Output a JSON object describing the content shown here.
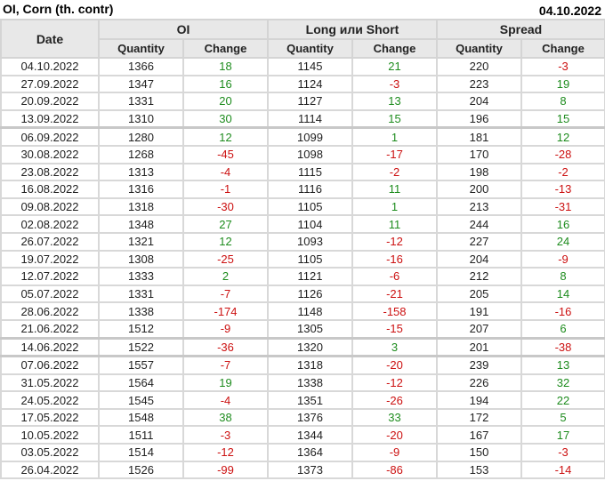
{
  "title": "OI, Corn (th. contr)",
  "date": "04.10.2022",
  "headers": {
    "date": "Date",
    "oi": "OI",
    "long_short": "Long или Short",
    "spread": "Spread",
    "quantity": "Quantity",
    "change": "Change"
  },
  "colors": {
    "positive": "#1e8c1e",
    "negative": "#cc1111",
    "header_bg": "#e8e8e8"
  },
  "rows": [
    [
      "04.10.2022",
      "1366",
      "18",
      "1145",
      "21",
      "220",
      "-3"
    ],
    [
      "27.09.2022",
      "1347",
      "16",
      "1124",
      "-3",
      "223",
      "19"
    ],
    [
      "20.09.2022",
      "1331",
      "20",
      "1127",
      "13",
      "204",
      "8"
    ],
    [
      "13.09.2022",
      "1310",
      "30",
      "1114",
      "15",
      "196",
      "15"
    ],
    [
      "06.09.2022",
      "1280",
      "12",
      "1099",
      "1",
      "181",
      "12"
    ],
    [
      "30.08.2022",
      "1268",
      "-45",
      "1098",
      "-17",
      "170",
      "-28"
    ],
    [
      "23.08.2022",
      "1313",
      "-4",
      "1115",
      "-2",
      "198",
      "-2"
    ],
    [
      "16.08.2022",
      "1316",
      "-1",
      "1116",
      "11",
      "200",
      "-13"
    ],
    [
      "09.08.2022",
      "1318",
      "-30",
      "1105",
      "1",
      "213",
      "-31"
    ],
    [
      "02.08.2022",
      "1348",
      "27",
      "1104",
      "11",
      "244",
      "16"
    ],
    [
      "26.07.2022",
      "1321",
      "12",
      "1093",
      "-12",
      "227",
      "24"
    ],
    [
      "19.07.2022",
      "1308",
      "-25",
      "1105",
      "-16",
      "204",
      "-9"
    ],
    [
      "12.07.2022",
      "1333",
      "2",
      "1121",
      "-6",
      "212",
      "8"
    ],
    [
      "05.07.2022",
      "1331",
      "-7",
      "1126",
      "-21",
      "205",
      "14"
    ],
    [
      "28.06.2022",
      "1338",
      "-174",
      "1148",
      "-158",
      "191",
      "-16"
    ],
    [
      "21.06.2022",
      "1512",
      "-9",
      "1305",
      "-15",
      "207",
      "6"
    ],
    [
      "14.06.2022",
      "1522",
      "-36",
      "1320",
      "3",
      "201",
      "-38"
    ],
    [
      "07.06.2022",
      "1557",
      "-7",
      "1318",
      "-20",
      "239",
      "13"
    ],
    [
      "31.05.2022",
      "1564",
      "19",
      "1338",
      "-12",
      "226",
      "32"
    ],
    [
      "24.05.2022",
      "1545",
      "-4",
      "1351",
      "-26",
      "194",
      "22"
    ],
    [
      "17.05.2022",
      "1548",
      "38",
      "1376",
      "33",
      "172",
      "5"
    ],
    [
      "10.05.2022",
      "1511",
      "-3",
      "1344",
      "-20",
      "167",
      "17"
    ],
    [
      "03.05.2022",
      "1514",
      "-12",
      "1364",
      "-9",
      "150",
      "-3"
    ],
    [
      "26.04.2022",
      "1526",
      "-99",
      "1373",
      "-86",
      "153",
      "-14"
    ]
  ]
}
